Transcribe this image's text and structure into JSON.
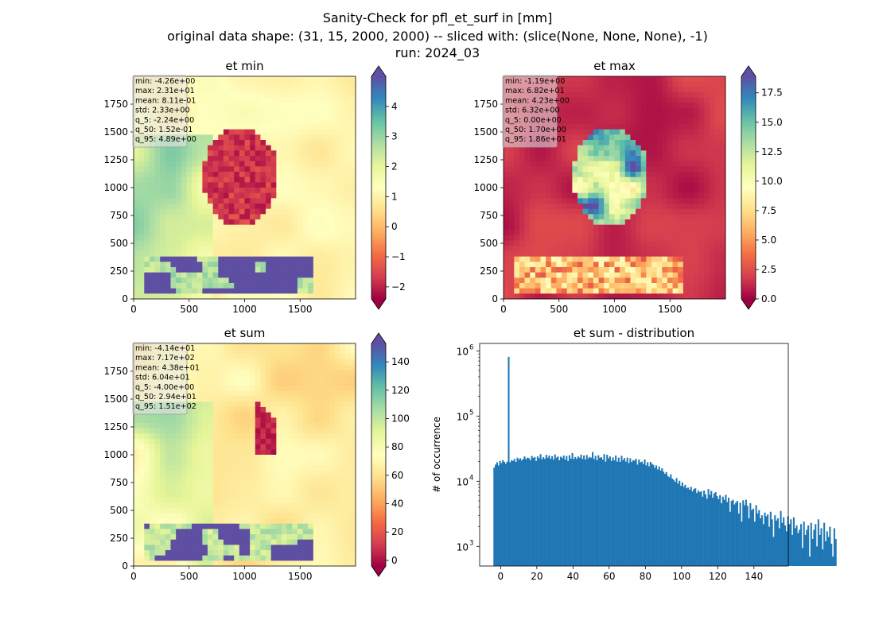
{
  "figure": {
    "title_line1": "Sanity-Check for pfl_et_surf in [mm]",
    "title_line2": "original data shape: (31, 15, 2000, 2000) -- sliced with: (slice(None, None, None), -1)",
    "title_line3": "run: 2024_03"
  },
  "chart_data": [
    {
      "type": "heatmap",
      "title": "et min",
      "xlabel": "",
      "ylabel": "",
      "xlim": [
        0,
        2000
      ],
      "ylim": [
        0,
        2000
      ],
      "xticks": [
        0,
        500,
        1000,
        1500
      ],
      "yticks": [
        0,
        250,
        500,
        750,
        1000,
        1250,
        1500,
        1750
      ],
      "colormap": "Spectral",
      "colorbar": {
        "min": -2.4,
        "max": 5,
        "ticks": [
          -2,
          -1,
          0,
          1,
          2,
          3,
          4
        ],
        "extend": "both"
      },
      "stats": [
        "min: -4.26e+00",
        "max: 2.31e+01",
        "mean: 8.11e-01",
        "std: 2.33e+00",
        "q_5: -2.24e+00",
        "q_50: 1.52e-01",
        "q_95: 4.89e+00"
      ]
    },
    {
      "type": "heatmap",
      "title": "et max",
      "xlabel": "",
      "ylabel": "",
      "xlim": [
        0,
        2000
      ],
      "ylim": [
        0,
        2000
      ],
      "xticks": [
        0,
        500,
        1000,
        1500
      ],
      "yticks": [
        0,
        250,
        500,
        750,
        1000,
        1250,
        1500,
        1750
      ],
      "colormap": "Spectral",
      "colorbar": {
        "min": 0,
        "max": 18.9,
        "ticks": [
          0.0,
          2.5,
          5.0,
          7.5,
          10.0,
          12.5,
          15.0,
          17.5
        ],
        "tick_labels": [
          "0.0",
          "2.5",
          "5.0",
          "7.5",
          "10.0",
          "12.5",
          "15.0",
          "17.5"
        ],
        "extend": "both"
      },
      "stats": [
        "min: -1.19e+00",
        "max: 6.82e+01",
        "mean: 4.23e+00",
        "std: 6.32e+00",
        "q_5: 0.00e+00",
        "q_50: 1.70e+00",
        "q_95: 1.86e+01"
      ]
    },
    {
      "type": "heatmap",
      "title": "et sum",
      "xlabel": "",
      "ylabel": "",
      "xlim": [
        0,
        2000
      ],
      "ylim": [
        0,
        2000
      ],
      "xticks": [
        0,
        500,
        1000,
        1500
      ],
      "yticks": [
        0,
        250,
        500,
        750,
        1000,
        1250,
        1500,
        1750
      ],
      "colormap": "Spectral",
      "colorbar": {
        "min": -4,
        "max": 153,
        "ticks": [
          0,
          20,
          40,
          60,
          80,
          100,
          120,
          140
        ],
        "extend": "both"
      },
      "stats": [
        "min: -4.14e+01",
        "max: 7.17e+02",
        "mean: 4.38e+01",
        "std: 6.04e+01",
        "q_5: -4.00e+00",
        "q_50: 2.94e+01",
        "q_95: 1.51e+02"
      ]
    },
    {
      "type": "bar",
      "title": "et sum - distribution",
      "xlabel": "",
      "ylabel": "# of occurrence",
      "y_scale": "log",
      "xlim": [
        -11.6,
        159
      ],
      "ylim": [
        500,
        1300000
      ],
      "xticks": [
        0,
        20,
        40,
        60,
        80,
        100,
        120,
        140
      ],
      "yticks": [
        1000,
        10000,
        100000,
        1000000
      ],
      "ytick_labels": [
        "10^3",
        "10^4",
        "10^5",
        "10^6"
      ],
      "bin_start": -4.0,
      "bin_width": 0.8,
      "color": "#1f77b4",
      "values": [
        16200,
        18000,
        19500,
        17500,
        20500,
        19000,
        21000,
        19800,
        18500,
        20000,
        810000,
        19500,
        21000,
        20500,
        22000,
        19800,
        23000,
        21500,
        22500,
        20800,
        22000,
        24000,
        21800,
        23000,
        22600,
        21000,
        24500,
        22800,
        23500,
        20500,
        24000,
        22500,
        26000,
        21800,
        23400,
        22000,
        25500,
        23000,
        24800,
        22000,
        24200,
        21500,
        25800,
        23000,
        24000,
        21000,
        23800,
        22600,
        24800,
        21500,
        24400,
        20500,
        25000,
        22200,
        27000,
        21900,
        23500,
        22000,
        24000,
        23000,
        25500,
        22000,
        24800,
        21500,
        25200,
        22400,
        23600,
        23000,
        28000,
        22000,
        24500,
        21000,
        25000,
        22800,
        23400,
        21500,
        26000,
        20000,
        25500,
        22500,
        24000,
        20500,
        23200,
        21000,
        24800,
        20000,
        23000,
        19800,
        24600,
        21200,
        22600,
        20000,
        23000,
        19000,
        22500,
        19800,
        21000,
        20800,
        22000,
        18000,
        21500,
        19500,
        20000,
        18400,
        21600,
        17500,
        19600,
        17000,
        19800,
        18500,
        17800,
        16000,
        17500,
        15200,
        16800,
        14600,
        15800,
        14000,
        13000,
        13800,
        12000,
        11500,
        12800,
        11000,
        10500,
        9800,
        11200,
        9200,
        10200,
        8500,
        9600,
        8200,
        8800,
        7800,
        8000,
        7400,
        8200,
        7000,
        7600,
        7800,
        6600,
        7200,
        6800,
        7000,
        5800,
        7200,
        6300,
        5400,
        7600,
        6200,
        7100,
        5600,
        6500,
        6800,
        5900,
        5300,
        6100,
        4600,
        5800,
        5200,
        6200,
        4800,
        5600,
        3400,
        5000,
        5200,
        4400,
        4700,
        5000,
        3200,
        4700,
        2400,
        5100,
        4300,
        5200,
        4200,
        2700,
        4600,
        3600,
        3800,
        2400,
        4300,
        3200,
        3600,
        2700,
        3000,
        2200,
        3300,
        2900,
        3100,
        2000,
        3400,
        2600,
        1400,
        3000,
        2500,
        2700,
        1900,
        3500,
        2300,
        2800,
        2100,
        1700,
        2900,
        2200,
        2600,
        1500,
        2800,
        1900,
        2100,
        1600,
        1800,
        2200,
        950,
        2400,
        1500,
        1800,
        2100,
        700,
        2300,
        1300,
        1800,
        2200,
        1000,
        2600,
        1500,
        1900,
        900,
        2300,
        1200,
        1700,
        1400,
        2000,
        1100,
        700,
        1900,
        1300
      ]
    }
  ]
}
